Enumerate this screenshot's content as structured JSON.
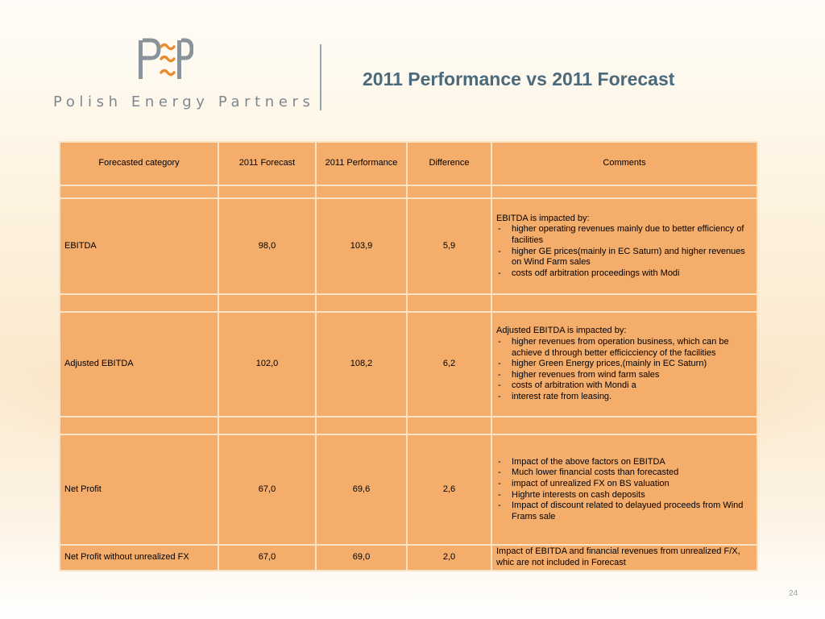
{
  "logo": {
    "letters": "PEP",
    "text": "Polish Energy Partners",
    "colors": {
      "grey": "#8a929a",
      "orange": "#e88a2e"
    }
  },
  "slide": {
    "title": "2011 Performance vs 2011 Forecast",
    "page_number": "24"
  },
  "table": {
    "headers": [
      "Forecasted category",
      "2011 Forecast",
      "2011 Performance",
      "Difference",
      "Comments"
    ],
    "rows": [
      {
        "category": "EBITDA",
        "forecast": "98,0",
        "performance": "103,9",
        "difference": "5,9",
        "comment_intro": "EBITDA is impacted by:",
        "comment_items": [
          "higher operating revenues mainly due to better efficiency of facilities",
          "higher GE prices(mainly in EC Saturn) and higher revenues on Wind Farm sales",
          "costs odf arbitration proceedings with Modi"
        ]
      },
      {
        "category": "Adjusted EBITDA",
        "forecast": "102,0",
        "performance": "108,2",
        "difference": "6,2",
        "comment_intro": "Adjusted EBITDA is impacted by:",
        "comment_items": [
          "higher revenues from operation business, which can be achieve d through better efficicciency of the facilities",
          "higher Green Energy prices,(mainly in EC Saturn)",
          "higher revenues from wind farm sales",
          "costs of arbitration with Mondi a",
          "interest rate from leasing."
        ]
      },
      {
        "category": "Net Profit",
        "forecast": "67,0",
        "performance": "69,6",
        "difference": "2,6",
        "comment_items": [
          "Impact of the above  factors on EBITDA",
          "Much lower financial costs than forecasted",
          "impact of unrealized FX on BS valuation",
          "Highrte interests on cash deposits",
          "Impact of discount related to delayued proceeds from Wind Frams sale"
        ]
      },
      {
        "category": "Net Profit without unrealized FX",
        "forecast": "67,0",
        "performance": "69,0",
        "difference": "2,0",
        "comment_text": "Impact of EBITDA and financial revenues from unrealized F/X, whic are not included in Forecast"
      }
    ]
  },
  "colors": {
    "cell_fill": "#f5ad6c",
    "cell_border": "#fbe4c5",
    "title": "#4a6a7c"
  }
}
